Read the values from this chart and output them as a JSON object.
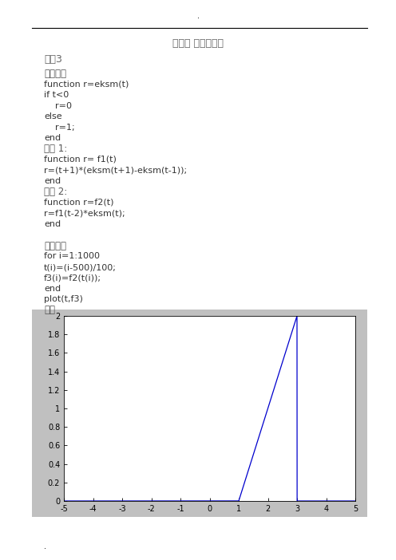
{
  "title_center": "实验二 信号的运算",
  "section_label": "一、3",
  "text_lines": [
    [
      "定义阶跃",
      false
    ],
    [
      "function r=eksm(t)",
      true
    ],
    [
      "if t<0",
      true
    ],
    [
      "    r=0",
      true
    ],
    [
      "else",
      true
    ],
    [
      "    r=1;",
      true
    ],
    [
      "end",
      true
    ],
    [
      "函数 1:",
      false
    ],
    [
      "function r= f1(t)",
      true
    ],
    [
      "r=(t+1)*(eksm(t+1)-eksm(t-1));",
      true
    ],
    [
      "end",
      true
    ],
    [
      "函数 2:",
      false
    ],
    [
      "function r=f2(t)",
      true
    ],
    [
      "r=f1(t-2)*eksm(t);",
      true
    ],
    [
      "end",
      true
    ],
    [
      "",
      false
    ],
    [
      "主程序：",
      false
    ],
    [
      "for i=1:1000",
      true
    ],
    [
      "t(i)=(i-500)/100;",
      true
    ],
    [
      "f3(i)=f2(t(i));",
      true
    ],
    [
      "end",
      true
    ],
    [
      "plot(t,f3)",
      true
    ],
    [
      "图像",
      false
    ]
  ],
  "plot_xlim": [
    -5,
    5
  ],
  "plot_ylim": [
    0,
    2
  ],
  "plot_xticks": [
    -5,
    -4,
    -3,
    -2,
    -1,
    0,
    1,
    2,
    3,
    4,
    5
  ],
  "plot_yticks": [
    0,
    0.2,
    0.4,
    0.6,
    0.8,
    1.0,
    1.2,
    1.4,
    1.6,
    1.8,
    2.0
  ],
  "line_color": "#0000cd",
  "bg_color": "#c0c0c0",
  "plot_bg_color": "#ffffff",
  "page_bg": "#ffffff",
  "header_dot": ".",
  "footer_dot": "."
}
